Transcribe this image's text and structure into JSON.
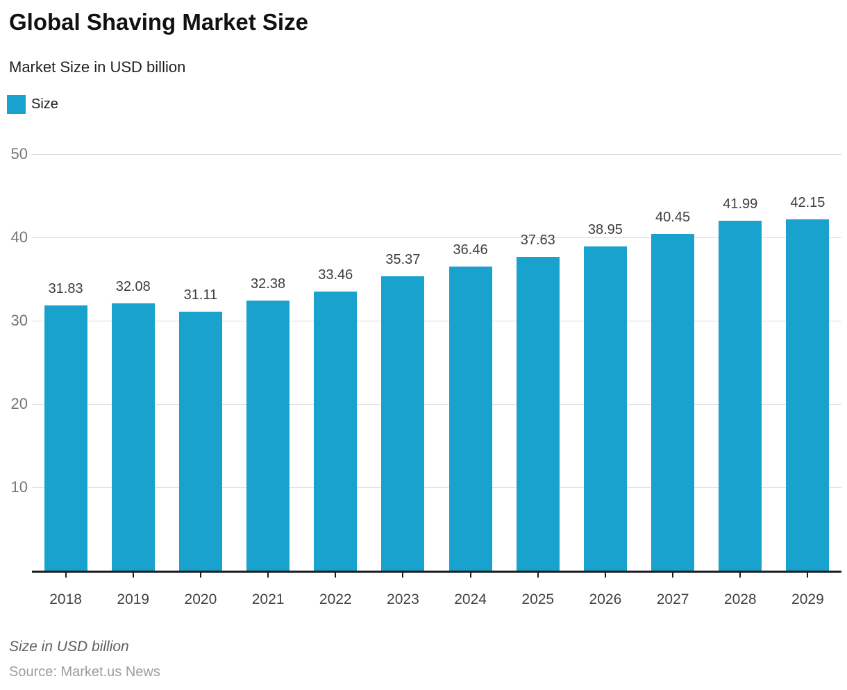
{
  "header": {
    "title": "Global Shaving Market Size",
    "subtitle": "Market Size in USD billion"
  },
  "legend": {
    "items": [
      {
        "label": "Size",
        "color": "#1AA2CE"
      }
    ]
  },
  "chart_data": {
    "type": "bar",
    "title": "Global Shaving Market Size",
    "subtitle": "Market Size in USD billion",
    "categories": [
      "2018",
      "2019",
      "2020",
      "2021",
      "2022",
      "2023",
      "2024",
      "2025",
      "2026",
      "2027",
      "2028",
      "2029"
    ],
    "series": [
      {
        "name": "Size",
        "color": "#1AA2CE",
        "values": [
          31.83,
          32.08,
          31.11,
          32.38,
          33.46,
          35.37,
          36.46,
          37.63,
          38.95,
          40.45,
          41.99,
          42.15
        ]
      }
    ],
    "value_labels": [
      "31.83",
      "32.08",
      "31.11",
      "32.38",
      "33.46",
      "35.37",
      "36.46",
      "37.63",
      "38.95",
      "40.45",
      "41.99",
      "42.15"
    ],
    "ylim": [
      0,
      50
    ],
    "yticks": [
      10,
      20,
      30,
      40,
      50
    ],
    "grid": true,
    "legend_position": "top-left",
    "xlabel": "",
    "ylabel": ""
  },
  "footer": {
    "note": "Size in USD billion",
    "source": "Source: Market.us News"
  },
  "colors": {
    "bar": "#1AA2CE",
    "gridline": "#dcdcdc",
    "axis": "#1d1d1d",
    "y_tick_label": "#757575",
    "x_tick_label": "#424242",
    "value_label": "#3d3d3d"
  }
}
